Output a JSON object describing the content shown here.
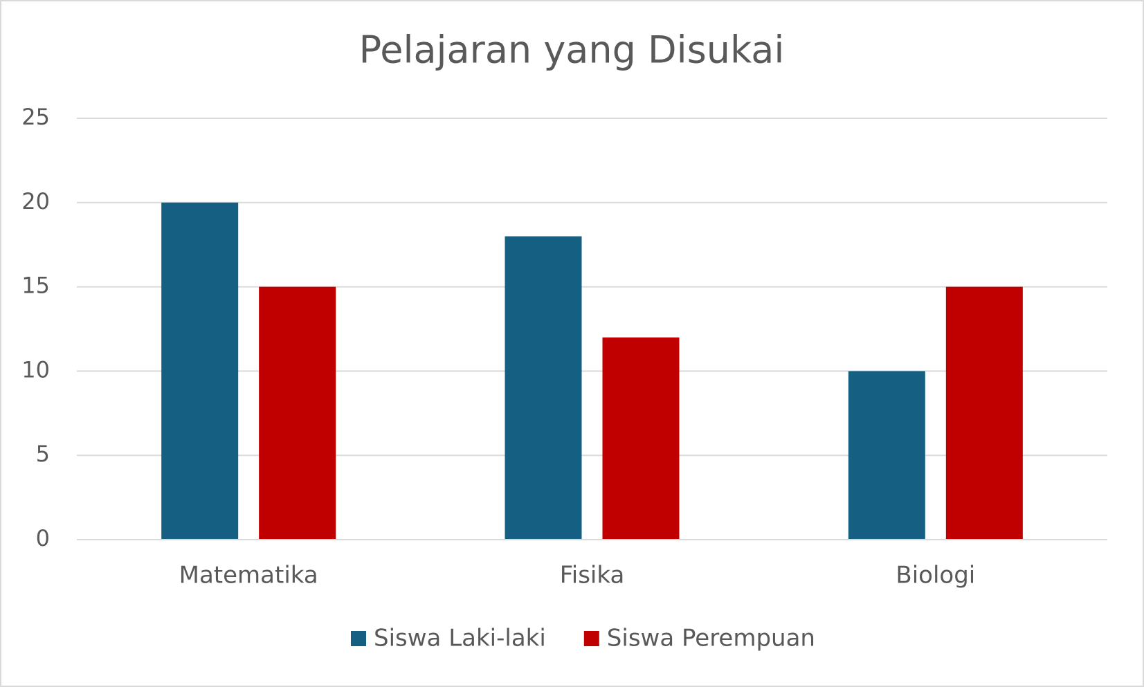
{
  "chart_data": {
    "type": "bar",
    "title": "Pelajaran yang Disukai",
    "categories": [
      "Matematika",
      "Fisika",
      "Biologi"
    ],
    "series": [
      {
        "name": "Siswa Laki-laki",
        "color": "#156082",
        "values": [
          20,
          18,
          10
        ]
      },
      {
        "name": "Siswa Perempuan",
        "color": "#c00000",
        "values": [
          15,
          12,
          15
        ]
      }
    ],
    "ylim": [
      0,
      25
    ],
    "yticks": [
      0,
      5,
      10,
      15,
      20,
      25
    ],
    "grid": true,
    "legend": "bottom"
  }
}
